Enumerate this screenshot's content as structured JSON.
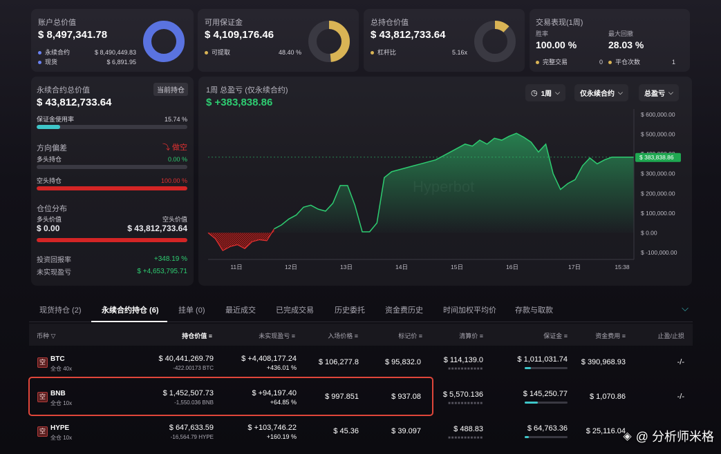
{
  "colors": {
    "accent_green": "#2ecc71",
    "danger_red": "#e03131",
    "margin_teal": "#3ec6c9",
    "donut_blue": "#5a73e0",
    "donut_gold": "#d9b455",
    "highlight": "#e0463a"
  },
  "account_value": {
    "label": "账户总价值",
    "value": "$ 8,497,341.78",
    "items": [
      {
        "name": "永续合约",
        "value": "$ 8,490,449.83",
        "color": "#6a82f2"
      },
      {
        "name": "现货",
        "value": "$ 6,891.95",
        "color": "#6a82f2"
      }
    ],
    "donut_fraction": 0.9992
  },
  "available_margin": {
    "label": "可用保证金",
    "value": "$ 4,109,176.46",
    "items": [
      {
        "name": "可提取",
        "value": "48.40 %",
        "color": "#d9b455"
      }
    ],
    "donut_fraction": 0.484
  },
  "total_position": {
    "label": "总持仓价值",
    "value": "$ 43,812,733.64",
    "items": [
      {
        "name": "杠杆比",
        "value": "5.16x",
        "color": "#d9b455"
      }
    ],
    "donut_fraction": 0.12
  },
  "trading_performance": {
    "label": "交易表现(1周)",
    "win_rate_label": "胜率",
    "win_rate": "100.00 %",
    "drawdown_label": "最大回撤",
    "drawdown": "28.03 %",
    "items": [
      {
        "name": "完整交易",
        "value": "0",
        "color": "#d9b455"
      },
      {
        "name": "平仓次数",
        "value": "1",
        "color": "#d9b455"
      }
    ]
  },
  "perp_panel": {
    "label": "永续合约总价值",
    "badge": "当前持仓",
    "value": "$ 43,812,733.64",
    "margin_usage_label": "保证金使用率",
    "margin_usage": "15.74 %",
    "margin_usage_fraction": 0.1574,
    "bias_label": "方向偏差",
    "bias_value": "做空",
    "long_label": "多头持仓",
    "long_pct": "0.00 %",
    "long_fraction": 0,
    "short_label": "空头持仓",
    "short_pct": "100.00 %",
    "short_fraction": 1,
    "dist_label": "仓位分布",
    "long_value_label": "多头价值",
    "short_value_label": "空头价值",
    "long_value": "$ 0.00",
    "short_value": "$ 43,812,733.64",
    "roi_label": "投资回报率",
    "roi": "+348.19 %",
    "upnl_label": "未实现盈亏",
    "upnl": "$ +4,653,795.71"
  },
  "pnl_chart": {
    "label": "1周 总盈亏 (仅永续合约)",
    "value": "$ +383,838.86",
    "dropdowns": {
      "period": "1周",
      "scope": "仅永续合约",
      "metric": "总盈亏"
    },
    "watermark": "Hyperbot",
    "current_tag": "$ 383,838.86"
  },
  "chart_data": {
    "type": "area",
    "ylim": [
      -100000,
      600000
    ],
    "yticks": [
      "$ 600,000.00",
      "$ 500,000.00",
      "$ 400,000.00",
      "$ 300,000.00",
      "$ 200,000.00",
      "$ 100,000.00",
      "$ 0.00",
      "$ -100,000.00"
    ],
    "xticks": [
      "11日",
      "12日",
      "13日",
      "14日",
      "15日",
      "16日",
      "17日",
      "15:38"
    ],
    "x": [
      0,
      0.3,
      0.6,
      0.9,
      1.2,
      1.5,
      1.8,
      2.1,
      2.4,
      2.7,
      3.0,
      3.3,
      3.6,
      3.9,
      4.2,
      4.5,
      4.8,
      5.1,
      5.4,
      5.7,
      6.0,
      6.3,
      6.6,
      6.9,
      7.2,
      7.5,
      7.8,
      8.1,
      8.4,
      8.7,
      9.0,
      9.3,
      9.6,
      9.9,
      10.2,
      10.5,
      10.8,
      11.1,
      11.4,
      11.7,
      12.0,
      12.3,
      12.6,
      12.9,
      13.2,
      13.5,
      13.8,
      14.1,
      14.4,
      14.7,
      15.0,
      15.3,
      15.6,
      15.9,
      16.2,
      16.5,
      16.8,
      17.1,
      17.4
    ],
    "values": [
      0,
      -30000,
      -90000,
      -70000,
      -60000,
      -80000,
      -45000,
      -35000,
      -40000,
      20000,
      40000,
      70000,
      90000,
      130000,
      140000,
      120000,
      110000,
      150000,
      240000,
      240000,
      140000,
      5000,
      5000,
      50000,
      280000,
      310000,
      320000,
      330000,
      340000,
      350000,
      360000,
      370000,
      390000,
      410000,
      430000,
      450000,
      440000,
      470000,
      450000,
      480000,
      470000,
      490000,
      505000,
      485000,
      460000,
      410000,
      450000,
      300000,
      220000,
      250000,
      270000,
      340000,
      380000,
      350000,
      370000,
      383838,
      383838,
      383838,
      383838
    ]
  },
  "tabs": [
    "现货持仓 (2)",
    "永续合约持仓 (6)",
    "挂单 (0)",
    "最近成交",
    "已完成交易",
    "历史委托",
    "资金费历史",
    "时间加权平均价",
    "存款与取款"
  ],
  "table": {
    "headers": [
      "币种",
      "持仓价值",
      "未实现盈亏",
      "入场价格",
      "标记价",
      "清算价",
      "保证金",
      "资金费用",
      "止盈/止损"
    ],
    "short_badge": "空",
    "rows": [
      {
        "coin": "BTC",
        "mode": "全仓 40x",
        "value": "$ 40,441,269.79",
        "size": "-422.00173 BTC",
        "upnl": "$ +4,408,177.24",
        "upnl_pct": "+436.01 %",
        "entry": "$ 106,277.8",
        "mark": "$ 95,832.0",
        "liq": "$ 114,139.0",
        "margin": "$ 1,011,031.74",
        "margin_fraction": 0.15,
        "funding": "$ 390,968.93",
        "tpsl": "-/-"
      },
      {
        "coin": "BNB",
        "mode": "全仓 10x",
        "value": "$ 1,452,507.73",
        "size": "-1,550.036 BNB",
        "upnl": "$ +94,197.40",
        "upnl_pct": "+64.85 %",
        "entry": "$ 997.851",
        "mark": "$ 937.08",
        "liq": "$ 5,570.136",
        "margin": "$ 145,250.77",
        "margin_fraction": 0.3,
        "funding": "$ 1,070.86",
        "tpsl": "-/-"
      },
      {
        "coin": "HYPE",
        "mode": "全仓 10x",
        "value": "$ 647,633.59",
        "size": "-16,564.79 HYPE",
        "upnl": "$ +103,746.22",
        "upnl_pct": "+160.19 %",
        "entry": "$ 45.36",
        "mark": "$ 39.097",
        "liq": "$ 488.83",
        "margin": "$ 64,763.36",
        "margin_fraction": 0.1,
        "funding": "$ 25,116.04",
        "tpsl": ""
      }
    ]
  },
  "watermark_text": "@ 分析师米格"
}
